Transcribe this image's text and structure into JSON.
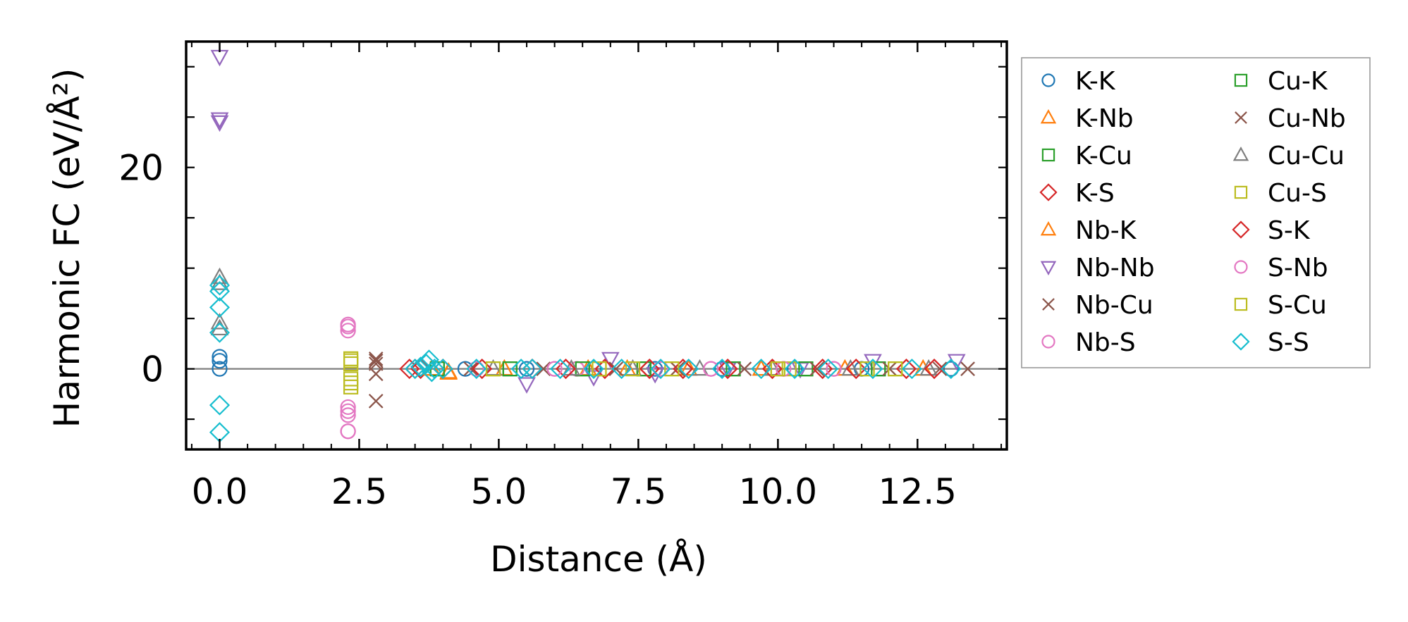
{
  "chart_data": {
    "type": "scatter",
    "title": "",
    "xlabel": "Distance (Å)",
    "ylabel": "Harmonic FC (eV/Å²)",
    "xlim": [
      -0.6,
      14.1
    ],
    "ylim": [
      -8,
      32.5
    ],
    "xticks": [
      "0.0",
      "2.5",
      "5.0",
      "7.5",
      "10.0",
      "12.5"
    ],
    "xtick_values": [
      0,
      2.5,
      5,
      7.5,
      10,
      12.5
    ],
    "yticks": [
      "0",
      "20"
    ],
    "ytick_values": [
      0,
      20
    ],
    "reference_line_y": 0,
    "grid": false,
    "legend_position": "outside-right",
    "legend_columns": 2,
    "series": [
      {
        "name": "K-K",
        "marker": "circle",
        "color": "#1f77b4",
        "points": [
          [
            0,
            1.2
          ],
          [
            0,
            0.8
          ],
          [
            0,
            0
          ],
          [
            4.4,
            0
          ],
          [
            5.5,
            0
          ],
          [
            6.7,
            0
          ],
          [
            7.8,
            0
          ],
          [
            9.0,
            0
          ],
          [
            10.3,
            0
          ],
          [
            11.5,
            0
          ],
          [
            13.1,
            0
          ]
        ]
      },
      {
        "name": "K-Nb",
        "marker": "triangle-up",
        "color": "#ff7f0e",
        "points": [
          [
            3.8,
            0
          ],
          [
            4.1,
            -0.4
          ],
          [
            5.1,
            0
          ],
          [
            6.6,
            0
          ],
          [
            7.3,
            0
          ],
          [
            8.4,
            0
          ],
          [
            9.7,
            0
          ],
          [
            11.2,
            0
          ],
          [
            12.6,
            0
          ]
        ]
      },
      {
        "name": "K-Cu",
        "marker": "square",
        "color": "#2ca02c",
        "points": [
          [
            3.9,
            0
          ],
          [
            5.2,
            0
          ],
          [
            6.5,
            0
          ],
          [
            7.6,
            0
          ],
          [
            9.2,
            0
          ],
          [
            10.5,
            0
          ],
          [
            11.8,
            0
          ]
        ]
      },
      {
        "name": "K-S",
        "marker": "diamond",
        "color": "#d62728",
        "points": [
          [
            3.4,
            0
          ],
          [
            3.6,
            0
          ],
          [
            4.0,
            0
          ],
          [
            4.7,
            0
          ],
          [
            5.6,
            0
          ],
          [
            6.2,
            0
          ],
          [
            6.9,
            0
          ],
          [
            7.7,
            0
          ],
          [
            8.3,
            0
          ],
          [
            9.1,
            0
          ],
          [
            9.9,
            0
          ],
          [
            10.8,
            0
          ],
          [
            11.4,
            0
          ],
          [
            12.3,
            0
          ],
          [
            12.8,
            0
          ]
        ]
      },
      {
        "name": "Nb-K",
        "marker": "triangle-up",
        "color": "#ff7f0e",
        "points": [
          [
            3.8,
            0
          ],
          [
            4.1,
            -0.3
          ],
          [
            5.1,
            0
          ],
          [
            6.6,
            0
          ],
          [
            7.3,
            0
          ],
          [
            8.4,
            0
          ],
          [
            9.7,
            0
          ],
          [
            11.2,
            0
          ],
          [
            12.6,
            0
          ]
        ]
      },
      {
        "name": "Nb-Nb",
        "marker": "triangle-down",
        "color": "#9467bd",
        "points": [
          [
            0,
            31
          ],
          [
            0,
            24.8
          ],
          [
            0,
            24.5
          ],
          [
            5.5,
            -1.5
          ],
          [
            6.7,
            -0.8
          ],
          [
            7.0,
            1
          ],
          [
            7.8,
            -0.5
          ],
          [
            9.1,
            0
          ],
          [
            10.4,
            0
          ],
          [
            11.7,
            0.8
          ],
          [
            13.2,
            0.8
          ]
        ]
      },
      {
        "name": "Nb-Cu",
        "marker": "x",
        "color": "#8c564b",
        "points": [
          [
            2.8,
            1
          ],
          [
            2.8,
            0.5
          ],
          [
            2.8,
            -0.5
          ],
          [
            2.8,
            -3.2
          ],
          [
            4.5,
            0
          ],
          [
            5.8,
            0
          ],
          [
            7.1,
            0
          ],
          [
            8.2,
            0
          ],
          [
            9.4,
            0
          ],
          [
            10.7,
            0
          ],
          [
            12.0,
            0
          ],
          [
            12.9,
            0
          ],
          [
            13.4,
            0
          ]
        ]
      },
      {
        "name": "Nb-S",
        "marker": "circle",
        "color": "#e377c2",
        "points": [
          [
            2.3,
            4.4
          ],
          [
            2.3,
            3.8
          ],
          [
            2.3,
            -3.8
          ],
          [
            2.3,
            -4.6
          ],
          [
            2.3,
            -6.2
          ],
          [
            4.6,
            0
          ],
          [
            6.0,
            0
          ],
          [
            6.4,
            0
          ],
          [
            7.9,
            0
          ],
          [
            8.8,
            0
          ],
          [
            10.1,
            0
          ],
          [
            11.0,
            0
          ]
        ]
      },
      {
        "name": "Cu-K",
        "marker": "square",
        "color": "#2ca02c",
        "points": [
          [
            3.9,
            0
          ],
          [
            5.2,
            0
          ],
          [
            6.5,
            0
          ],
          [
            7.6,
            0
          ],
          [
            9.2,
            0
          ],
          [
            10.5,
            0
          ],
          [
            11.8,
            0
          ]
        ]
      },
      {
        "name": "Cu-Nb",
        "marker": "x",
        "color": "#8c564b",
        "points": [
          [
            2.8,
            0.8
          ],
          [
            2.8,
            -0.5
          ],
          [
            2.8,
            -3.2
          ],
          [
            4.5,
            0
          ],
          [
            5.8,
            0
          ],
          [
            7.1,
            0
          ],
          [
            8.2,
            0
          ],
          [
            9.4,
            0
          ],
          [
            10.7,
            0
          ],
          [
            12.0,
            0
          ],
          [
            13.4,
            0
          ]
        ]
      },
      {
        "name": "Cu-Cu",
        "marker": "triangle-up",
        "color": "#7f7f7f",
        "points": [
          [
            0,
            9.1
          ],
          [
            0,
            8.5
          ],
          [
            0,
            4.6
          ],
          [
            0,
            4.0
          ],
          [
            4.9,
            0
          ],
          [
            6.3,
            0
          ],
          [
            7.4,
            0
          ],
          [
            8.6,
            0
          ],
          [
            9.9,
            0
          ],
          [
            11.3,
            0
          ],
          [
            12.7,
            0
          ]
        ]
      },
      {
        "name": "Cu-S",
        "marker": "square",
        "color": "#bcbd22",
        "points": [
          [
            2.35,
            1.0
          ],
          [
            2.35,
            0.5
          ],
          [
            2.35,
            -1.0
          ],
          [
            2.35,
            -1.8
          ],
          [
            4.9,
            0
          ],
          [
            6.8,
            0
          ],
          [
            7.4,
            0
          ],
          [
            8.1,
            0
          ],
          [
            10.0,
            0
          ],
          [
            10.2,
            0
          ],
          [
            11.6,
            0
          ],
          [
            12.1,
            0
          ]
        ]
      },
      {
        "name": "S-K",
        "marker": "diamond",
        "color": "#d62728",
        "points": [
          [
            3.5,
            0
          ],
          [
            4.0,
            0
          ],
          [
            4.7,
            0
          ],
          [
            5.6,
            0
          ],
          [
            6.2,
            0
          ],
          [
            6.9,
            0
          ],
          [
            7.7,
            0
          ],
          [
            8.3,
            0
          ],
          [
            9.1,
            0
          ],
          [
            9.9,
            0
          ],
          [
            10.8,
            0
          ],
          [
            11.4,
            0
          ],
          [
            12.3,
            0
          ],
          [
            12.8,
            0
          ]
        ]
      },
      {
        "name": "S-Nb",
        "marker": "circle",
        "color": "#e377c2",
        "points": [
          [
            2.3,
            4.2
          ],
          [
            2.3,
            -4.2
          ],
          [
            2.3,
            -6.2
          ],
          [
            4.6,
            0
          ],
          [
            6.0,
            0
          ],
          [
            7.9,
            0
          ],
          [
            8.8,
            0
          ],
          [
            10.1,
            0
          ],
          [
            11.0,
            0
          ]
        ]
      },
      {
        "name": "S-Cu",
        "marker": "square",
        "color": "#bcbd22",
        "points": [
          [
            2.35,
            0.8
          ],
          [
            2.35,
            -1.4
          ],
          [
            4.9,
            0
          ],
          [
            6.8,
            0
          ],
          [
            8.1,
            0
          ],
          [
            10.0,
            0
          ],
          [
            11.6,
            0
          ],
          [
            12.1,
            0
          ]
        ]
      },
      {
        "name": "S-S",
        "marker": "diamond",
        "color": "#17becf",
        "points": [
          [
            0,
            8.3
          ],
          [
            0,
            7.7
          ],
          [
            0,
            6.1
          ],
          [
            0,
            3.6
          ],
          [
            0,
            -3.6
          ],
          [
            0,
            -6.3
          ],
          [
            3.5,
            0
          ],
          [
            3.6,
            0.2
          ],
          [
            3.7,
            0.5
          ],
          [
            3.75,
            0.9
          ],
          [
            3.8,
            -0.3
          ],
          [
            3.85,
            0
          ],
          [
            4.0,
            0
          ],
          [
            4.6,
            0
          ],
          [
            5.4,
            0
          ],
          [
            5.6,
            0
          ],
          [
            6.1,
            0
          ],
          [
            6.7,
            0
          ],
          [
            7.2,
            0
          ],
          [
            7.9,
            0
          ],
          [
            8.4,
            0
          ],
          [
            9.0,
            0
          ],
          [
            9.7,
            0
          ],
          [
            10.3,
            0
          ],
          [
            10.9,
            0
          ],
          [
            11.7,
            0
          ],
          [
            12.4,
            0
          ],
          [
            13.1,
            0
          ]
        ]
      }
    ]
  }
}
